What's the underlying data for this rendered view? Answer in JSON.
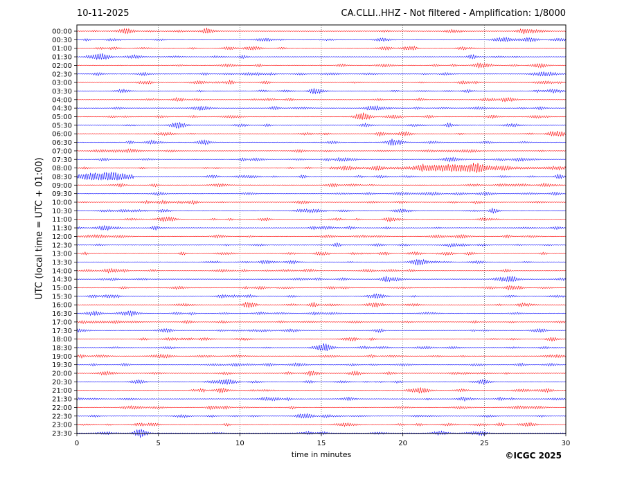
{
  "header": {
    "date": "10-11-2025",
    "title": "CA.CLLI..HHZ - Not filtered - Amplification: 1/8000"
  },
  "footer": {
    "copyright": "©ICGC 2025"
  },
  "chart_data": {
    "type": "line",
    "title": "CA.CLLI..HHZ - Not filtered - Amplification: 1/8000",
    "xlabel": "time in minutes",
    "ylabel": "UTC (local time = UTC + 01:00)",
    "xlim": [
      0,
      30
    ],
    "x_ticks": [
      0,
      5,
      10,
      15,
      20,
      25,
      30
    ],
    "grid": "vertical dotted lines at x ticks",
    "series_colors": [
      "#ff0000",
      "#0000ff"
    ],
    "rows": [
      "00:00",
      "00:30",
      "01:00",
      "01:30",
      "02:00",
      "02:30",
      "03:00",
      "03:30",
      "04:00",
      "04:30",
      "05:00",
      "05:30",
      "06:00",
      "06:30",
      "07:00",
      "07:30",
      "08:00",
      "08:30",
      "09:00",
      "09:30",
      "10:00",
      "10:30",
      "11:00",
      "11:30",
      "12:00",
      "12:30",
      "13:00",
      "13:30",
      "14:00",
      "14:30",
      "15:00",
      "15:30",
      "16:00",
      "16:30",
      "17:00",
      "17:30",
      "18:00",
      "18:30",
      "19:00",
      "19:30",
      "20:00",
      "20:30",
      "21:00",
      "21:30",
      "22:00",
      "22:30",
      "23:00",
      "23:30"
    ],
    "events": [
      {
        "row": "08:00",
        "start_min": 15.5,
        "end_min": 30,
        "peak_min": 23.3
      },
      {
        "row": "08:30",
        "start_min": 0,
        "end_min": 3.5,
        "peak_min": 1.5
      }
    ]
  }
}
